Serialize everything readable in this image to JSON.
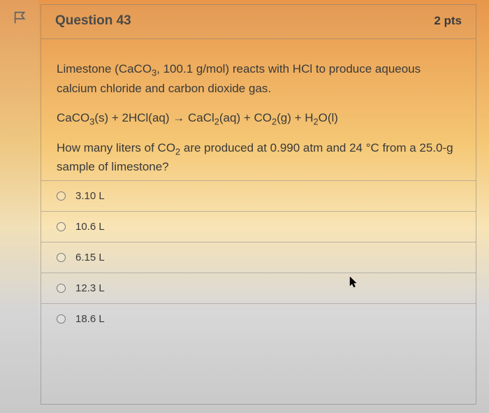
{
  "header": {
    "title": "Question 43",
    "points": "2 pts"
  },
  "body": {
    "prompt_html": "Limestone (CaCO<sub>3</sub>, 100.1 g/mol) reacts with HCl to produce aqueous calcium chloride and carbon dioxide gas.",
    "equation_html": "CaCO<sub>3</sub>(s) + 2HCl(aq) → CaCl<sub>2</sub>(aq) + CO<sub>2</sub>(g) + H<sub>2</sub>O(l)",
    "followup_html": "How many liters of CO<sub>2</sub> are produced at 0.990 atm and 24 °C from a 25.0-g sample of limestone?"
  },
  "options": [
    {
      "label": "3.10 L"
    },
    {
      "label": "10.6 L"
    },
    {
      "label": "6.15 L"
    },
    {
      "label": "12.3 L"
    },
    {
      "label": "18.6 L"
    }
  ],
  "colors": {
    "text": "#3a3a3a",
    "border": "rgba(120,120,120,0.5)"
  }
}
